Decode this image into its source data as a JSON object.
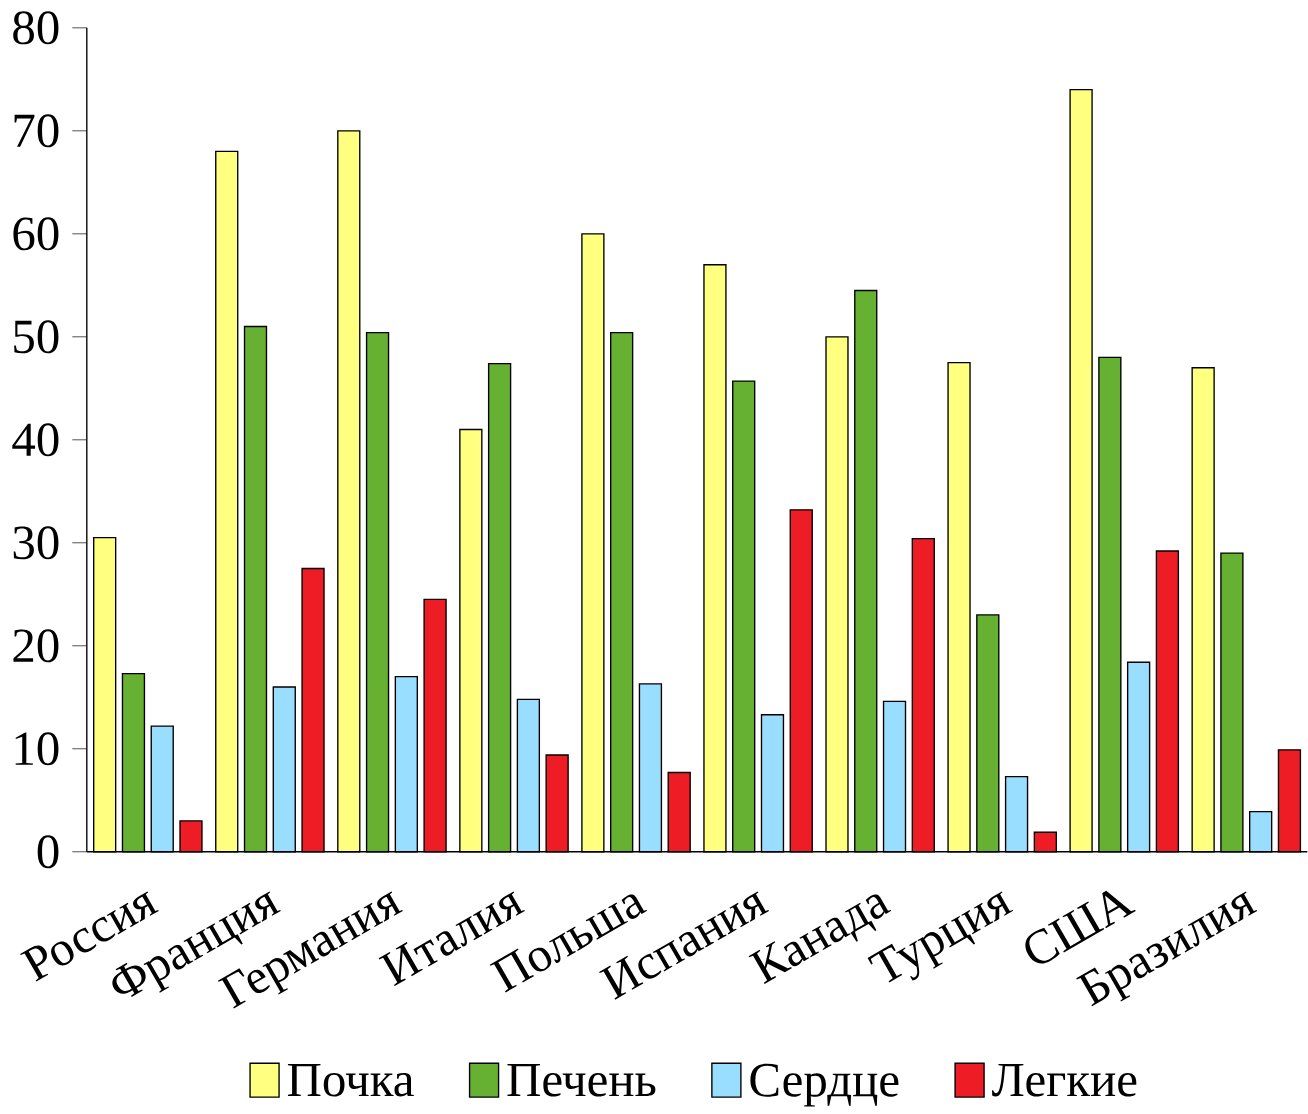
{
  "chart_data": {
    "type": "bar",
    "categories": [
      "Россия",
      "Франция",
      "Германия",
      "Италия",
      "Польша",
      "Испания",
      "Канада",
      "Турция",
      "США",
      "Бразилия"
    ],
    "series": [
      {
        "name": "Почка",
        "color": "#ffff80",
        "values": [
          30.5,
          68,
          70,
          41,
          60,
          57,
          50,
          47.5,
          74,
          47
        ]
      },
      {
        "name": "Печень",
        "color": "#66b032",
        "values": [
          17.3,
          51,
          50.4,
          47.4,
          50.4,
          45.7,
          54.5,
          23,
          48,
          29
        ]
      },
      {
        "name": "Сердце",
        "color": "#99ddff",
        "values": [
          12.2,
          16,
          17,
          14.8,
          16.3,
          13.3,
          14.6,
          7.3,
          18.4,
          3.9
        ]
      },
      {
        "name": "Легкие",
        "color": "#ee1c25",
        "values": [
          3,
          27.5,
          24.5,
          9.4,
          7.7,
          33.2,
          30.4,
          1.9,
          29.2,
          9.9
        ]
      }
    ],
    "ylim": [
      0,
      80
    ],
    "yticks": [
      0,
      10,
      20,
      30,
      40,
      50,
      60,
      70,
      80
    ],
    "grid": false,
    "legend": "bottom"
  }
}
